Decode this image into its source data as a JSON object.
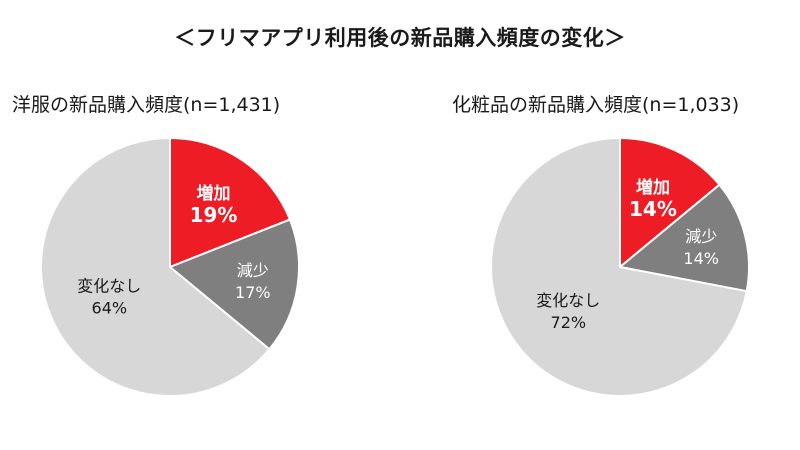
{
  "title": "＜フリマアプリ利用後の新品購入頻度の変化＞",
  "chart_data": [
    {
      "type": "pie",
      "title": "洋服の新品購入頻度(n=1,431)",
      "slices": [
        {
          "label": "増加",
          "value": 19,
          "value_text": "19%",
          "color": "#ee1c25",
          "text_color": "#ffffff",
          "bold": true
        },
        {
          "label": "減少",
          "value": 17,
          "value_text": "17%",
          "color": "#7f7f7f",
          "text_color": "#ffffff",
          "bold": false
        },
        {
          "label": "変化なし",
          "value": 64,
          "value_text": "64%",
          "color": "#d7d7d7",
          "text_color": "#1a1a1a",
          "bold": false
        }
      ]
    },
    {
      "type": "pie",
      "title": "化粧品の新品購入頻度(n=1,033)",
      "slices": [
        {
          "label": "増加",
          "value": 14,
          "value_text": "14%",
          "color": "#ee1c25",
          "text_color": "#ffffff",
          "bold": true
        },
        {
          "label": "減少",
          "value": 14,
          "value_text": "14%",
          "color": "#7f7f7f",
          "text_color": "#ffffff",
          "bold": false
        },
        {
          "label": "変化なし",
          "value": 72,
          "value_text": "72%",
          "color": "#d7d7d7",
          "text_color": "#1a1a1a",
          "bold": false
        }
      ]
    }
  ]
}
